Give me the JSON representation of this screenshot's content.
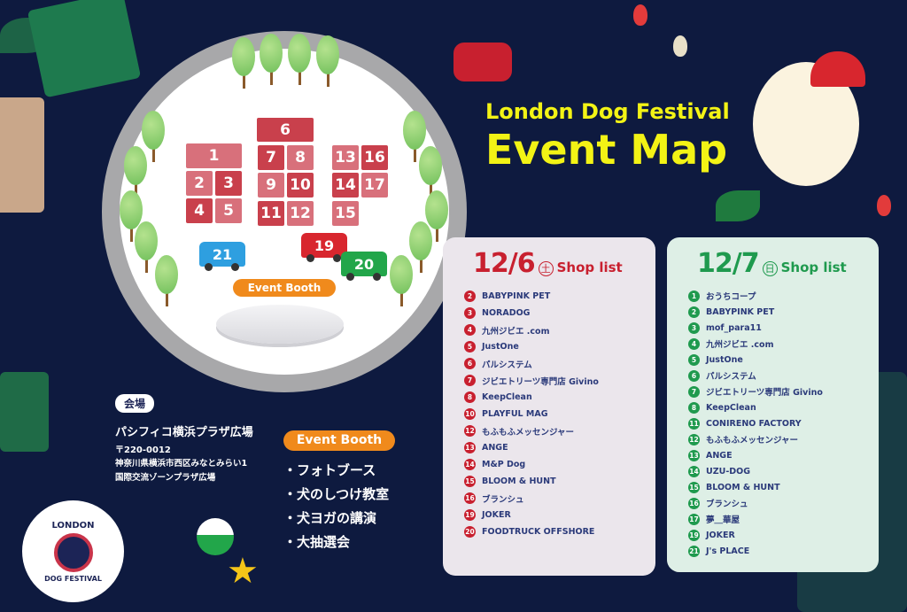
{
  "title": {
    "line1": "London Dog Festival",
    "line2": "Event Map"
  },
  "map": {
    "booths": [
      {
        "n": "1",
        "shade": "light"
      },
      {
        "n": "2",
        "shade": "light"
      },
      {
        "n": "3",
        "shade": "dark"
      },
      {
        "n": "4",
        "shade": "dark"
      },
      {
        "n": "5",
        "shade": "light"
      },
      {
        "n": "6",
        "shade": "dark"
      },
      {
        "n": "7",
        "shade": "dark"
      },
      {
        "n": "8",
        "shade": "light"
      },
      {
        "n": "9",
        "shade": "light"
      },
      {
        "n": "10",
        "shade": "dark"
      },
      {
        "n": "11",
        "shade": "dark"
      },
      {
        "n": "12",
        "shade": "light"
      },
      {
        "n": "13",
        "shade": "light"
      },
      {
        "n": "14",
        "shade": "dark"
      },
      {
        "n": "15",
        "shade": "light"
      },
      {
        "n": "16",
        "shade": "dark"
      },
      {
        "n": "17",
        "shade": "light"
      }
    ],
    "trucks": [
      {
        "n": "21",
        "color": "#2e9fe0"
      },
      {
        "n": "19",
        "color": "#d8262e"
      },
      {
        "n": "20",
        "color": "#22a64a"
      }
    ],
    "event_booth_label": "Event Booth"
  },
  "colors": {
    "booth_dark": "#c9404c",
    "booth_light": "#d8707b",
    "day1": "#c8202f",
    "day2": "#1f9a4e",
    "accent_orange": "#f08a1c",
    "title_yellow": "#f3f315",
    "background": "#0e1a3f"
  },
  "day1": {
    "date": "12/6",
    "dow": "土",
    "label": "Shop list",
    "shops": [
      {
        "n": "2",
        "name": "BABYPINK PET"
      },
      {
        "n": "3",
        "name": "NORADOG"
      },
      {
        "n": "4",
        "name": "九州ジビエ .com"
      },
      {
        "n": "5",
        "name": "JustOne"
      },
      {
        "n": "6",
        "name": "パルシステム"
      },
      {
        "n": "7",
        "name": "ジビエトリーツ専門店 Givino"
      },
      {
        "n": "8",
        "name": "KeepClean"
      },
      {
        "n": "10",
        "name": "PLAYFUL MAG"
      },
      {
        "n": "12",
        "name": "もふもふメッセンジャー"
      },
      {
        "n": "13",
        "name": "ANGE"
      },
      {
        "n": "14",
        "name": "M&P Dog"
      },
      {
        "n": "15",
        "name": "BLOOM & HUNT"
      },
      {
        "n": "16",
        "name": "ブランシュ"
      },
      {
        "n": "19",
        "name": "JOKER"
      },
      {
        "n": "20",
        "name": "FOODTRUCK OFFSHORE"
      }
    ]
  },
  "day2": {
    "date": "12/7",
    "dow": "日",
    "label": "Shop list",
    "shops": [
      {
        "n": "1",
        "name": "おうちコープ"
      },
      {
        "n": "2",
        "name": "BABYPINK PET"
      },
      {
        "n": "3",
        "name": "mof_para11"
      },
      {
        "n": "4",
        "name": "九州ジビエ .com"
      },
      {
        "n": "5",
        "name": "JustOne"
      },
      {
        "n": "6",
        "name": "パルシステム"
      },
      {
        "n": "7",
        "name": "ジビエトリーツ専門店 Givino"
      },
      {
        "n": "8",
        "name": "KeepClean"
      },
      {
        "n": "11",
        "name": "CONIRENO FACTORY"
      },
      {
        "n": "12",
        "name": "もふもふメッセンジャー"
      },
      {
        "n": "13",
        "name": "ANGE"
      },
      {
        "n": "14",
        "name": "UZU-DOG"
      },
      {
        "n": "15",
        "name": "BLOOM & HUNT"
      },
      {
        "n": "16",
        "name": "ブランシュ"
      },
      {
        "n": "17",
        "name": "夢＿華屋"
      },
      {
        "n": "19",
        "name": "JOKER"
      },
      {
        "n": "21",
        "name": "J's PLACE"
      }
    ]
  },
  "venue": {
    "label": "会場",
    "name": "パシフィコ横浜プラザ広場",
    "postal": "〒220-0012",
    "address1": "神奈川県横浜市西区みなとみらい1",
    "address2": "国際交流ゾーンプラザ広場"
  },
  "event_booth": {
    "label": "Event Booth",
    "items": [
      "・フォトブース",
      "・犬のしつけ教室",
      "・犬ヨガの講演",
      "・大抽選会"
    ]
  },
  "logo": {
    "top": "LONDON",
    "bottom": "DOG FESTIVAL"
  }
}
